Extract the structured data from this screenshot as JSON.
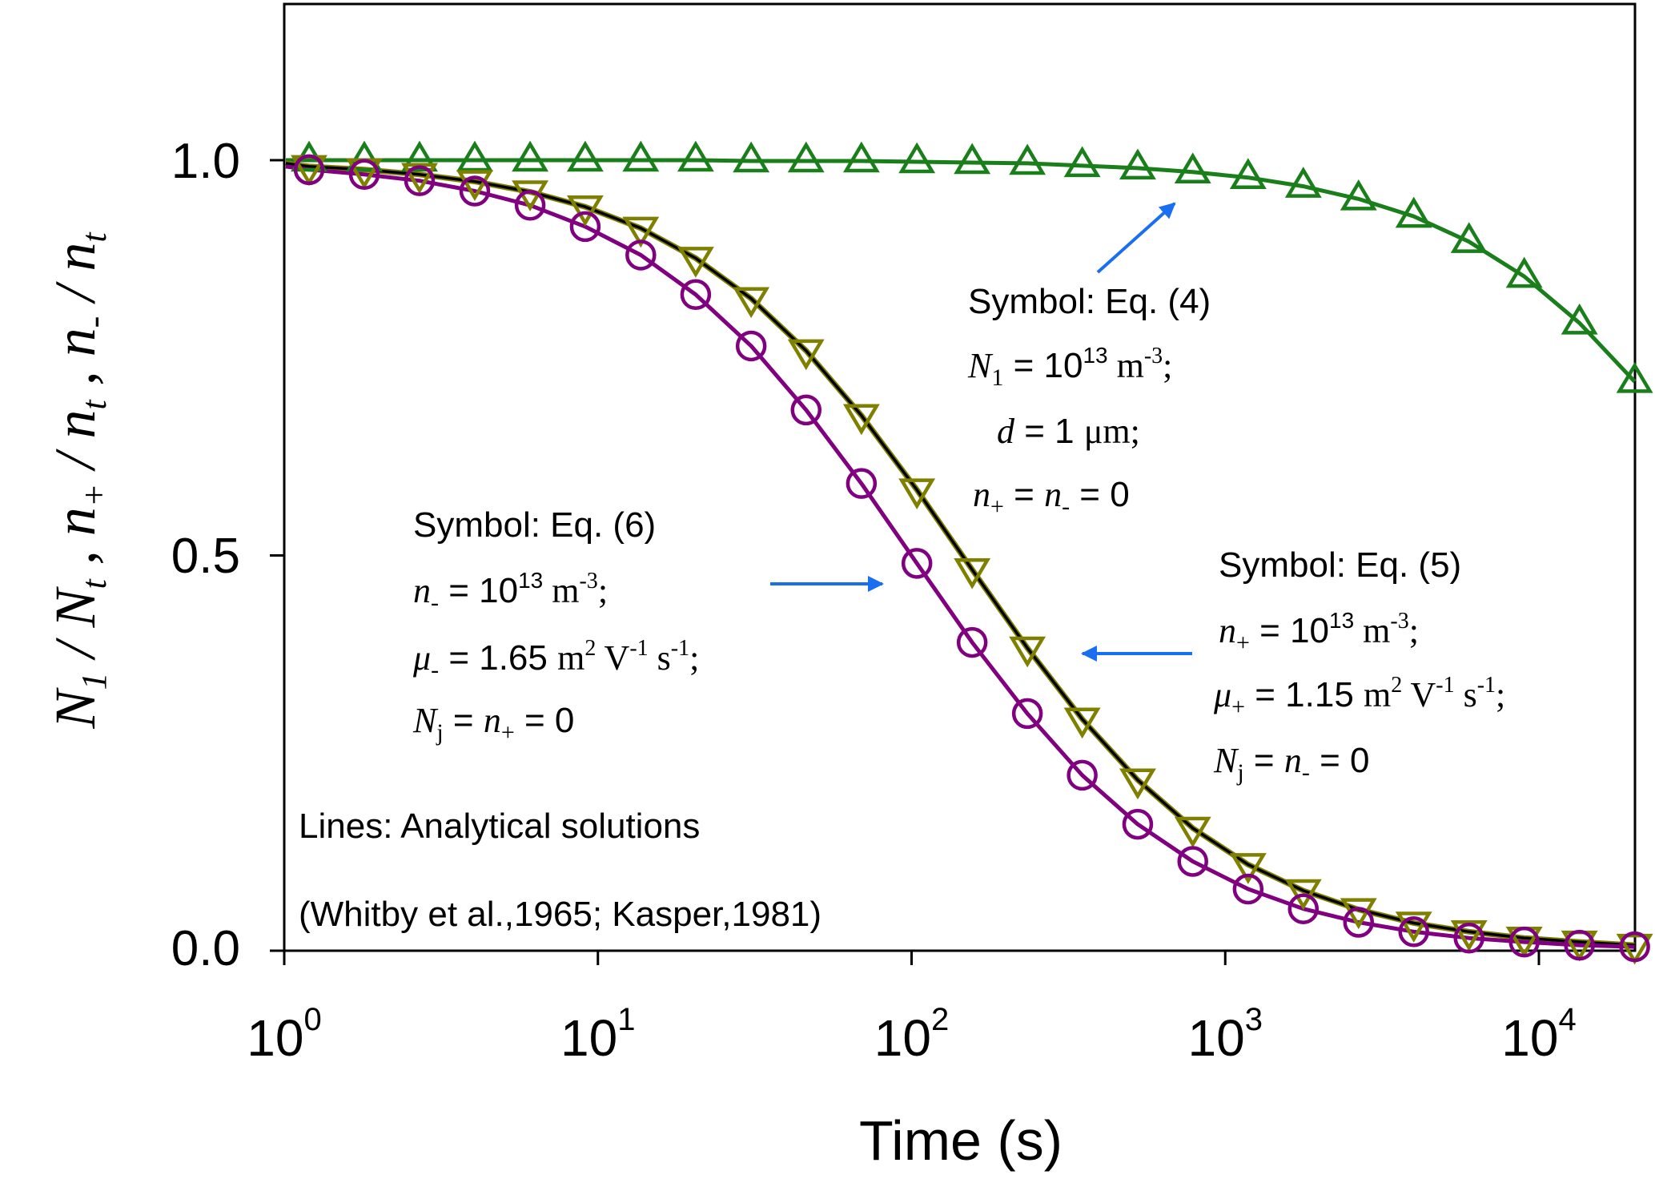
{
  "chart_data": {
    "type": "line",
    "title": "",
    "xlabel": "Time (s)",
    "ylabel_parts": [
      "N",
      "1",
      " / ",
      "N",
      "t",
      " , ",
      "n",
      "+",
      " / ",
      "n",
      "t",
      " , ",
      "n",
      "-",
      " / ",
      "n",
      "t"
    ],
    "ylabel": "N1 / Nt , n+ / nt , n- / nt",
    "xscale": "log",
    "xlim": [
      1,
      20000
    ],
    "ylim": [
      0,
      1.2
    ],
    "x_ticks": [
      {
        "value": 1,
        "base": "10",
        "exp": "0"
      },
      {
        "value": 10,
        "base": "10",
        "exp": "1"
      },
      {
        "value": 100,
        "base": "10",
        "exp": "2"
      },
      {
        "value": 1000,
        "base": "10",
        "exp": "3"
      },
      {
        "value": 10000,
        "base": "10",
        "exp": "4"
      }
    ],
    "y_ticks": [
      {
        "value": 0.0,
        "label": "0.0"
      },
      {
        "value": 0.5,
        "label": "0.5"
      },
      {
        "value": 1.0,
        "label": "1.0"
      }
    ],
    "grid": false,
    "x": [
      1.2,
      1.8,
      2.7,
      4.05,
      6.08,
      9.11,
      13.7,
      20.5,
      30.8,
      46.1,
      69.2,
      104,
      156,
      234,
      350,
      526,
      788,
      1183,
      1774,
      2661,
      3991,
      5987,
      8980,
      13470,
      20200
    ],
    "series": [
      {
        "name": "N1 / Nt (Symbol: Eq. (4))",
        "marker": "triangle-up",
        "marker_color": "#1a7f1a",
        "line_color": "#1a7f1a",
        "values": [
          1.0,
          1.0,
          1.0,
          1.0,
          1.0,
          1.0,
          1.0,
          1.0,
          0.999,
          0.999,
          0.999,
          0.998,
          0.997,
          0.996,
          0.993,
          0.99,
          0.985,
          0.978,
          0.967,
          0.951,
          0.929,
          0.897,
          0.853,
          0.794,
          0.72
        ]
      },
      {
        "name": "n+ / nt (Symbol: Eq. (5))",
        "marker": "triangle-down",
        "marker_color": "#808000",
        "line_color": "#000000",
        "values": [
          0.992,
          0.988,
          0.982,
          0.973,
          0.96,
          0.941,
          0.914,
          0.876,
          0.825,
          0.759,
          0.677,
          0.583,
          0.482,
          0.383,
          0.293,
          0.216,
          0.155,
          0.109,
          0.076,
          0.052,
          0.035,
          0.024,
          0.016,
          0.011,
          0.007
        ]
      },
      {
        "name": "n- / nt (Symbol: Eq. (6))",
        "marker": "circle",
        "marker_color": "#800080",
        "line_color": "#800080",
        "values": [
          0.988,
          0.982,
          0.974,
          0.961,
          0.943,
          0.916,
          0.88,
          0.83,
          0.765,
          0.684,
          0.591,
          0.49,
          0.39,
          0.3,
          0.222,
          0.16,
          0.113,
          0.078,
          0.053,
          0.036,
          0.024,
          0.016,
          0.011,
          0.007,
          0.005
        ]
      }
    ],
    "annotations": {
      "eq4": {
        "title": "Symbol: Eq. (4)",
        "line1": {
          "var": "N",
          "sub": "1",
          "rest": " = 10",
          "sup": "13",
          "unit": " m",
          "unit_sup": "-3",
          "end": ";"
        },
        "line2": {
          "var": "d",
          "rest": " = 1 ",
          "unit": "μm",
          "end": ";"
        },
        "line3": {
          "var": "n",
          "sub": "+",
          "eq": " = ",
          "var2": "n",
          "sub2": "-",
          "rest": " = 0"
        }
      },
      "eq6": {
        "title": "Symbol: Eq. (6)",
        "line1": {
          "var": "n",
          "sub": "-",
          "rest": " = 10",
          "sup": "13",
          "unit": " m",
          "unit_sup": "-3",
          "end": ";"
        },
        "line2": {
          "var": "μ",
          "sub": "-",
          "rest": " = 1.65 ",
          "unit_m": "m",
          "sup_m": "2",
          "unit_v": " V",
          "sup_v": "-1",
          "unit_s": " s",
          "sup_s": "-1",
          "end": ";"
        },
        "line3": {
          "var": "N",
          "sub": "j",
          "eq": " = ",
          "var2": "n",
          "sub2": "+",
          "rest": " = 0"
        }
      },
      "eq5": {
        "title": "Symbol: Eq. (5)",
        "line1": {
          "var": "n",
          "sub": "+",
          "rest": " = 10",
          "sup": "13",
          "unit": " m",
          "unit_sup": "-3",
          "end": ";"
        },
        "line2": {
          "var": "μ",
          "sub": "+",
          "rest": " = 1.15 ",
          "unit_m": "m",
          "sup_m": "2",
          "unit_v": " V",
          "sup_v": "-1",
          "unit_s": " s",
          "sup_s": "-1",
          "end": ";"
        },
        "line3": {
          "var": "N",
          "sub": "j",
          "eq": " = ",
          "var2": "n",
          "sub2": "-",
          "rest": " = 0"
        }
      },
      "lines_note": "Lines: Analytical solutions",
      "citation": "(Whitby et al.,1965; Kasper,1981)",
      "arrow_color": "#1a6ff0"
    }
  }
}
